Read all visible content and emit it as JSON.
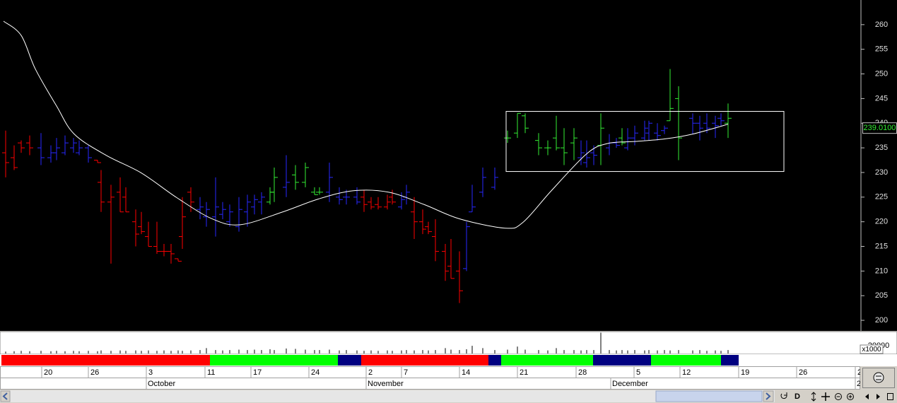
{
  "chart_data": {
    "type": "ohlc",
    "x": [
      0.8,
      2.0,
      3.0,
      4.2,
      5.8,
      7.2,
      8.0,
      9.2,
      10.4,
      11.2,
      12.5,
      13.8,
      14.3,
      15.7,
      17.0,
      17.8,
      19.2,
      20.0,
      21.0,
      22.2,
      23.2,
      24.2,
      25.2,
      25.8,
      27.0,
      28.3,
      29.2,
      30.5,
      31.5,
      32.5,
      33.8,
      35.0,
      36.0,
      37.0,
      38.2,
      38.8,
      40.5,
      41.8,
      43.2,
      44.5,
      45.2,
      46.6,
      48.0,
      49.0,
      50.5,
      51.5,
      52.5,
      53.5,
      54.8,
      55.5,
      56.8,
      57.5,
      58.6,
      59.8,
      60.6,
      61.6,
      63.0,
      63.8,
      65.0,
      66.0,
      66.8,
      68.3,
      70.0,
      71.8,
      73.2,
      74.3,
      76.2,
      77.5,
      78.7,
      79.8,
      81.2,
      82.2,
      83.0,
      84.0,
      85.0,
      86.2,
      87.2,
      88.0,
      88.8,
      89.8,
      91.2,
      91.8,
      93.0,
      94.0,
      94.8,
      96.0,
      98.0,
      99.0,
      100.0,
      101.2,
      102.0,
      103.0
    ],
    "high": [
      238.5,
      235.5,
      236.5,
      237.5,
      238,
      235.5,
      237,
      237.5,
      237,
      236.5,
      235.5,
      232.5,
      230.5,
      227.5,
      229,
      227,
      222.5,
      222,
      220,
      220,
      215.5,
      215.5,
      212.5,
      225,
      227,
      225,
      224,
      229,
      224,
      223.5,
      225,
      225.5,
      225.5,
      226,
      227,
      231,
      233.5,
      231.5,
      232,
      227,
      227,
      232,
      227,
      226.5,
      227,
      226.5,
      225,
      225,
      225.5,
      226.5,
      226,
      227.5,
      225,
      222.5,
      220,
      220.5,
      215.5,
      216.5,
      214,
      220,
      227.5,
      231,
      231,
      238.5,
      242,
      242,
      238,
      236.5,
      241.5,
      239,
      239,
      236.5,
      236.5,
      235.5,
      242,
      237.8,
      237,
      239,
      239,
      239.5,
      240.5,
      240.5,
      240,
      239.5,
      251,
      247.5,
      242,
      241.5,
      242,
      241.5,
      242,
      244
    ],
    "low": [
      229,
      230.5,
      234,
      233.5,
      231.5,
      232,
      232.5,
      233.5,
      234,
      233.5,
      232,
      232,
      222,
      211.5,
      222,
      222,
      215,
      217.5,
      215,
      213.5,
      213,
      211.5,
      212,
      214.5,
      222,
      220.5,
      219,
      217,
      220.5,
      219,
      218,
      219,
      221.5,
      221.5,
      223.5,
      224,
      225,
      226.5,
      227,
      225.5,
      225.5,
      224,
      223.5,
      223.5,
      223.5,
      222,
      222.5,
      222.5,
      222.5,
      223.5,
      222.5,
      223.5,
      216.5,
      217.5,
      217.5,
      212,
      208,
      208.5,
      203.5,
      210,
      222,
      225,
      226.5,
      236,
      237,
      238,
      233.5,
      233.5,
      234.5,
      231.5,
      232.5,
      231.5,
      231,
      231.5,
      231.5,
      233.5,
      235,
      235.5,
      234.5,
      235.5,
      236.5,
      236.5,
      236.5,
      237.8,
      240.5,
      232.5,
      237.8,
      236.5,
      238,
      237,
      239.5,
      237
    ],
    "open": [
      234,
      233,
      236,
      236,
      235,
      233,
      234,
      234,
      235,
      234,
      235,
      232.5,
      228,
      224,
      226,
      225,
      220,
      219,
      217,
      215,
      214,
      214,
      212.5,
      217,
      226,
      222.5,
      221,
      221,
      221.5,
      220,
      219,
      222,
      223,
      224,
      224,
      226,
      227,
      229.5,
      228,
      226,
      226,
      226,
      225,
      225,
      225,
      225,
      224,
      223.5,
      223,
      225,
      223,
      225,
      222,
      220,
      219,
      217,
      214,
      211,
      210,
      210.5,
      222,
      226,
      227,
      237,
      238,
      241.5,
      236.5,
      235,
      237,
      235,
      236,
      233,
      232,
      234,
      235.5,
      235,
      236,
      237,
      235,
      237,
      237,
      238,
      238,
      238.5,
      240.5,
      245,
      241,
      240,
      240,
      240,
      241,
      240
    ],
    "close": [
      232,
      231,
      235,
      235,
      233,
      234,
      235,
      236,
      236,
      235,
      233,
      232,
      224,
      225,
      222,
      222,
      217.5,
      218,
      215,
      214,
      214,
      213.5,
      212,
      221,
      224,
      223,
      222.5,
      223,
      222.5,
      222,
      222.5,
      224,
      224.5,
      225,
      226,
      229,
      228,
      228,
      231,
      225.5,
      226,
      229,
      224.5,
      225,
      224,
      223.5,
      223,
      223,
      224,
      224,
      224.5,
      226,
      220,
      218.5,
      218,
      214,
      210,
      208.5,
      206,
      219,
      223,
      229,
      229,
      237,
      242,
      239,
      235,
      235,
      235,
      234,
      237,
      234,
      233,
      233.5,
      239,
      236,
      235.5,
      236,
      237,
      238,
      239,
      240,
      237.5,
      239,
      243,
      237,
      240,
      239,
      239,
      239.5,
      240.5,
      241
    ],
    "bar_colors": [
      "#ff0000",
      "#ff0000",
      "#ff0000",
      "#ff0000",
      "#2828ff",
      "#2828ff",
      "#2828ff",
      "#2828ff",
      "#2828ff",
      "#2828ff",
      "#2828ff",
      "#ff0000",
      "#ff0000",
      "#ff0000",
      "#ff0000",
      "#ff0000",
      "#ff0000",
      "#ff0000",
      "#ff0000",
      "#ff0000",
      "#ff0000",
      "#ff0000",
      "#ff0000",
      "#ff0000",
      "#ff0000",
      "#2828ff",
      "#2828ff",
      "#2828ff",
      "#2828ff",
      "#2828ff",
      "#2828ff",
      "#2828ff",
      "#2828ff",
      "#2828ff",
      "#33ee33",
      "#33ee33",
      "#2828ff",
      "#33ee33",
      "#33ee33",
      "#33ee33",
      "#33ee33",
      "#2828ff",
      "#2828ff",
      "#2828ff",
      "#2828ff",
      "#ff0000",
      "#ff0000",
      "#ff0000",
      "#ff0000",
      "#ff0000",
      "#2828ff",
      "#2828ff",
      "#ff0000",
      "#ff0000",
      "#ff0000",
      "#ff0000",
      "#ff0000",
      "#ff0000",
      "#ff0000",
      "#2828ff",
      "#2828ff",
      "#2828ff",
      "#2828ff",
      "#33ee33",
      "#33ee33",
      "#33ee33",
      "#33ee33",
      "#33ee33",
      "#33ee33",
      "#33ee33",
      "#33ee33",
      "#2828ff",
      "#2828ff",
      "#2828ff",
      "#33ee33",
      "#2828ff",
      "#2828ff",
      "#33ee33",
      "#2828ff",
      "#2828ff",
      "#2828ff",
      "#2828ff",
      "#2828ff",
      "#2828ff",
      "#33ee33",
      "#33ee33",
      "#2828ff",
      "#2828ff",
      "#2828ff",
      "#2828ff",
      "#2828ff",
      "#33ee33"
    ],
    "xlim": [
      0,
      121.7
    ],
    "ylim": [
      198,
      265
    ],
    "yticks": [
      200,
      205,
      210,
      215,
      220,
      225,
      230,
      235,
      240,
      245,
      250,
      255,
      260
    ],
    "moving_average": {
      "color": "#ffffff",
      "x": [
        0.5,
        3,
        5,
        8,
        10.5,
        15,
        20,
        25,
        30,
        34,
        40,
        45,
        50,
        55,
        60,
        65,
        71.5,
        74,
        78,
        83,
        86,
        90,
        94,
        98,
        103
      ],
      "values": [
        260.7,
        257.8,
        251,
        243.5,
        237.8,
        233.5,
        229.9,
        224.9,
        220.6,
        219.4,
        222,
        224.6,
        226.3,
        226,
        223.5,
        220.6,
        218.7,
        219.9,
        226.3,
        233.8,
        235.9,
        236.3,
        236.8,
        237.8,
        239.8
      ]
    },
    "box": {
      "xlim": [
        71.6,
        110.9
      ],
      "ylim": [
        230.2,
        242.4
      ],
      "color": "#ffffff"
    },
    "last_price": {
      "value": 239.01,
      "label": "239.0100",
      "color": "#33ee33"
    },
    "volume": {
      "color": "#808080",
      "unit_label": "x1000",
      "ylim": [
        0,
        55000
      ],
      "yticks": [
        20000
      ],
      "values": [
        5000,
        6000,
        7000,
        6000,
        7000,
        6000,
        7000,
        6000,
        7000,
        6000,
        7000,
        6000,
        8000,
        7000,
        8000,
        7000,
        8000,
        7000,
        8000,
        7000,
        8000,
        7000,
        8000,
        7000,
        8000,
        9000,
        14000,
        9000,
        8000,
        9000,
        10000,
        9000,
        10000,
        9000,
        11000,
        9000,
        13000,
        12000,
        10000,
        9000,
        9000,
        10000,
        8000,
        9000,
        8000,
        7000,
        8000,
        7000,
        8000,
        7000,
        8000,
        9000,
        8000,
        9000,
        8000,
        9000,
        14000,
        10000,
        9000,
        11000,
        20000,
        14000,
        9000,
        10000,
        18000,
        10000,
        9000,
        8000,
        14000,
        9000,
        9000,
        8000,
        9000,
        9000,
        54000,
        9000,
        8000,
        9000,
        8000,
        9000,
        8000,
        9000,
        8000,
        9000,
        8000,
        9000,
        8000,
        9000,
        7000,
        8000,
        7000,
        9000
      ]
    },
    "trend_strip": [
      {
        "x": [
          0.2,
          29.7
        ],
        "color": "#ff0000"
      },
      {
        "x": [
          29.7,
          47.8
        ],
        "color": "#00ff00"
      },
      {
        "x": [
          47.8,
          51.1
        ],
        "color": "#000080"
      },
      {
        "x": [
          51.1,
          69.1
        ],
        "color": "#ff0000"
      },
      {
        "x": [
          69.1,
          70.9
        ],
        "color": "#000080"
      },
      {
        "x": [
          70.9,
          83.9
        ],
        "color": "#00ff00"
      },
      {
        "x": [
          83.9,
          92.1
        ],
        "color": "#000080"
      },
      {
        "x": [
          92.1,
          102.0
        ],
        "color": "#00ff00"
      },
      {
        "x": [
          102.0,
          104.5
        ],
        "color": "#000080"
      }
    ],
    "day_ticks": [
      {
        "value": 5.9,
        "label": "20"
      },
      {
        "value": 12.5,
        "label": "26"
      },
      {
        "value": 20.7,
        "label": "3"
      },
      {
        "value": 29.0,
        "label": "11"
      },
      {
        "value": 35.5,
        "label": "17"
      },
      {
        "value": 43.7,
        "label": "24"
      },
      {
        "value": 51.8,
        "label": "2"
      },
      {
        "value": 56.8,
        "label": "7"
      },
      {
        "value": 65.0,
        "label": "14"
      },
      {
        "value": 73.2,
        "label": "21"
      },
      {
        "value": 81.5,
        "label": "28"
      },
      {
        "value": 89.7,
        "label": "5"
      },
      {
        "value": 96.2,
        "label": "12"
      },
      {
        "value": 104.5,
        "label": "19"
      },
      {
        "value": 112.7,
        "label": "26"
      },
      {
        "value": 121.0,
        "label": "2"
      }
    ],
    "month_ticks": [
      {
        "value": 20.7,
        "label": "October"
      },
      {
        "value": 51.8,
        "label": "November"
      },
      {
        "value": 86.4,
        "label": "December"
      },
      {
        "value": 121.0,
        "label": "2"
      }
    ],
    "toolbar": {
      "d_button": "D"
    }
  }
}
